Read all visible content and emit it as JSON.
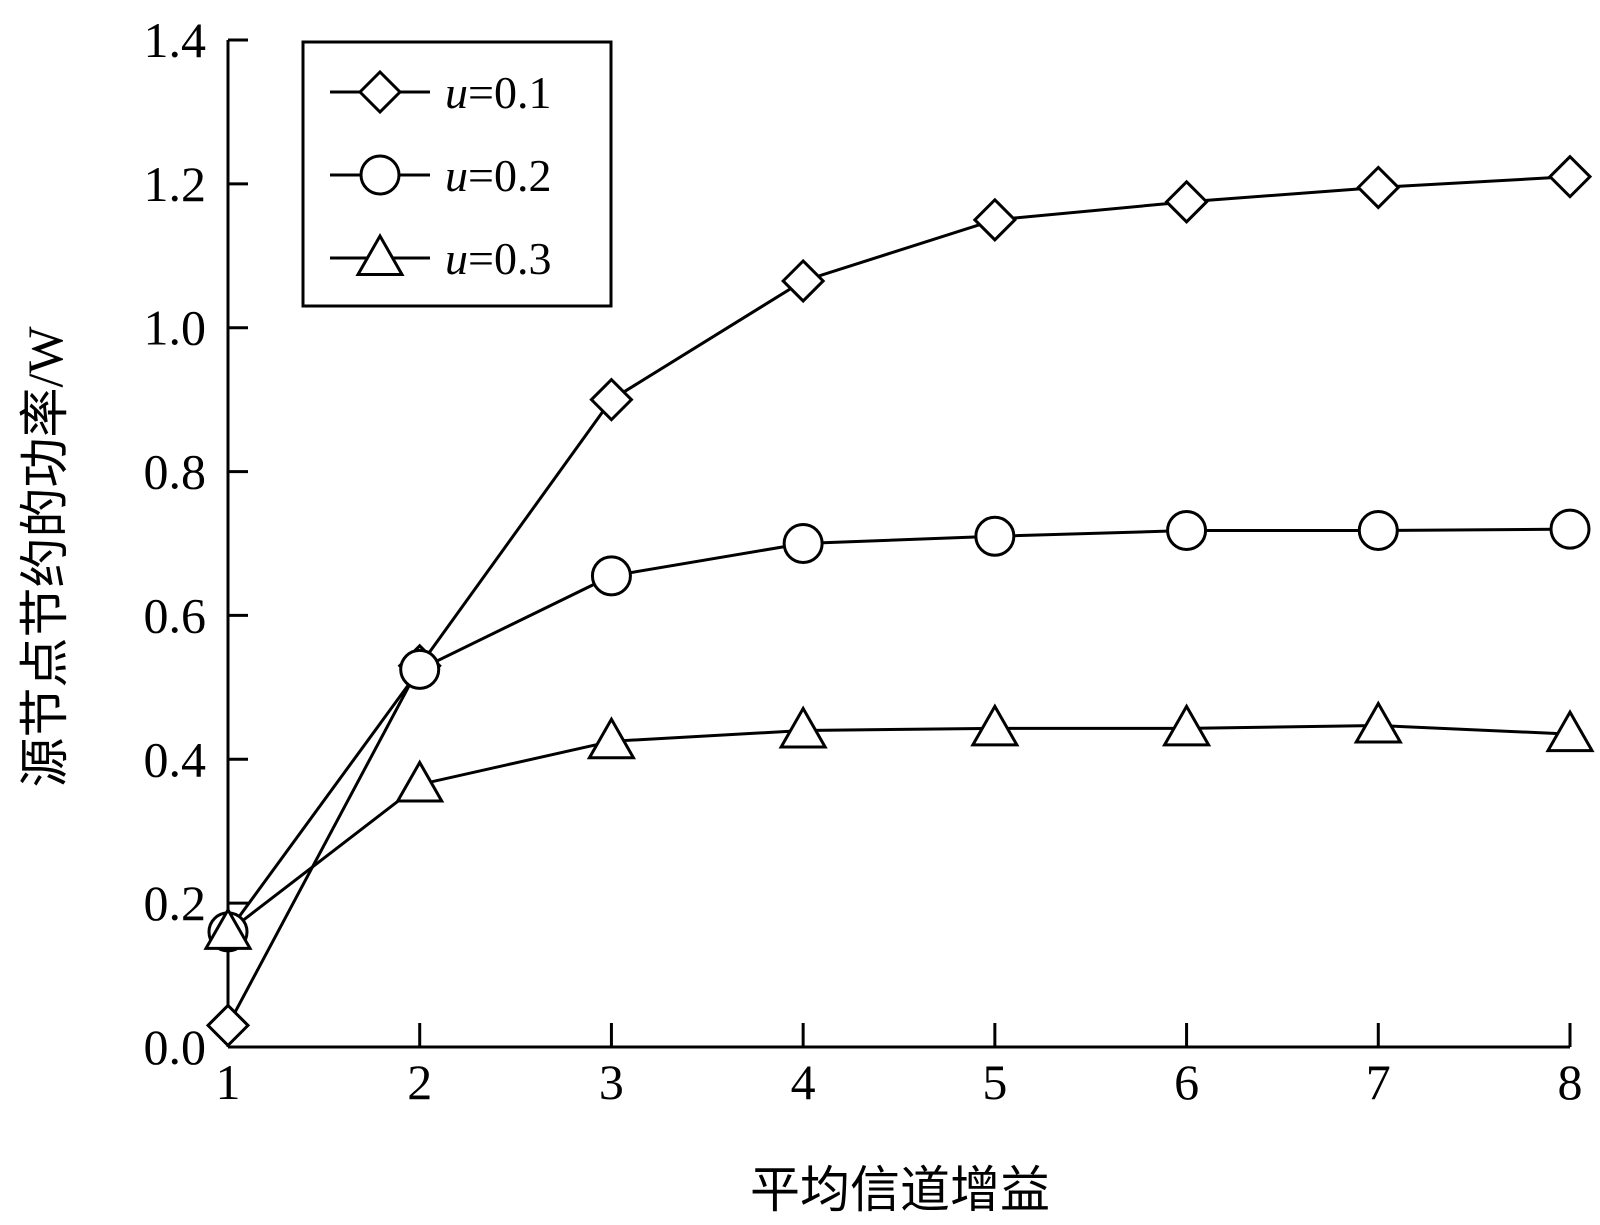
{
  "chart_data": {
    "type": "line",
    "xlabel": "平均信道增益",
    "ylabel": "源节点节约的功率/W",
    "x": [
      1,
      2,
      3,
      4,
      5,
      6,
      7,
      8
    ],
    "xlim": [
      1,
      8
    ],
    "ylim": [
      0.0,
      1.4
    ],
    "x_ticks": [
      "1",
      "2",
      "3",
      "4",
      "5",
      "6",
      "7",
      "8"
    ],
    "y_ticks": [
      "0.0",
      "0.2",
      "0.4",
      "0.6",
      "0.8",
      "1.0",
      "1.2",
      "1.4"
    ],
    "grid": false,
    "legend_position": "top-left",
    "series": [
      {
        "name": "u=0.1",
        "var": "u",
        "eq": "=0.1",
        "marker": "diamond",
        "values": [
          0.03,
          0.53,
          0.9,
          1.065,
          1.15,
          1.175,
          1.195,
          1.21
        ]
      },
      {
        "name": "u=0.2",
        "var": "u",
        "eq": "=0.2",
        "marker": "circle",
        "values": [
          0.16,
          0.525,
          0.655,
          0.7,
          0.71,
          0.718,
          0.718,
          0.72
        ]
      },
      {
        "name": "u=0.3",
        "var": "u",
        "eq": "=0.3",
        "marker": "triangle",
        "values": [
          0.16,
          0.365,
          0.425,
          0.44,
          0.443,
          0.443,
          0.447,
          0.435
        ]
      }
    ],
    "colors": {
      "line": "#000000",
      "background": "#ffffff"
    }
  }
}
